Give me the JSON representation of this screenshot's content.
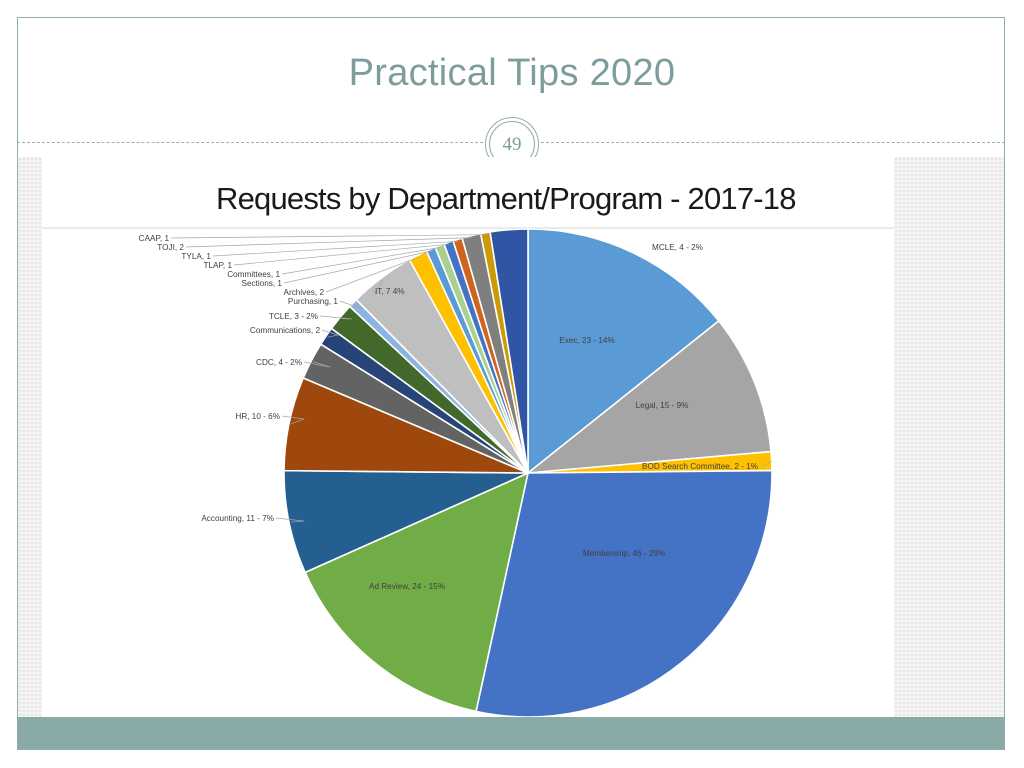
{
  "slide": {
    "title": "Practical Tips 2020",
    "page_number": "49"
  },
  "colors": {
    "title": "#7c9d9b",
    "frame": "#8fadac",
    "footer": "#8aaaa7"
  },
  "chart_data": {
    "type": "pie",
    "title": "Requests by Department/Program - 2017-18",
    "slices": [
      {
        "label": "Exec, 23 - 14%",
        "value": 23,
        "color": "#5b9bd5"
      },
      {
        "label": "Legal, 15 - 9%",
        "value": 15,
        "color": "#a5a5a5"
      },
      {
        "label": "BOD Search Committee, 2 - 1%",
        "value": 2,
        "color": "#ffc000"
      },
      {
        "label": "Membership, 46 - 29%",
        "value": 46,
        "color": "#4472c4"
      },
      {
        "label": "Ad Review, 24 - 15%",
        "value": 24,
        "color": "#70ad47"
      },
      {
        "label": "Accounting, 11 - 7%",
        "value": 11,
        "color": "#255e91"
      },
      {
        "label": "HR, 10 - 6%",
        "value": 10,
        "color": "#9e480e"
      },
      {
        "label": "CDC, 4 - 2%",
        "value": 4,
        "color": "#636363"
      },
      {
        "label": "Communications, 2",
        "value": 2,
        "color": "#264478"
      },
      {
        "label": "TCLE, 3 - 2%",
        "value": 3,
        "color": "#43682b"
      },
      {
        "label": "Purchasing, 1",
        "value": 1,
        "color": "#8cb4e0"
      },
      {
        "label": "IT, 7 4%",
        "value": 7,
        "color": "#bfbfbf"
      },
      {
        "label": "Archives, 2",
        "value": 2,
        "color": "#ffc000"
      },
      {
        "label": "Sections, 1",
        "value": 1,
        "color": "#5b9bd5"
      },
      {
        "label": "Committees, 1",
        "value": 1,
        "color": "#a9d08e"
      },
      {
        "label": "TLAP, 1",
        "value": 1,
        "color": "#4472c4"
      },
      {
        "label": "TYLA, 1",
        "value": 1,
        "color": "#d0641f"
      },
      {
        "label": "TOJI, 2",
        "value": 2,
        "color": "#7f7f7f"
      },
      {
        "label": "CAAP, 1",
        "value": 1,
        "color": "#cc9a06"
      },
      {
        "label": "MCLE,  4 - 2%",
        "value": 4,
        "color": "#2f55a4"
      }
    ]
  }
}
